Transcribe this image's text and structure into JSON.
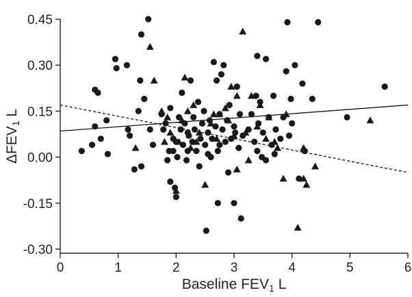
{
  "chart_data": {
    "type": "scatter",
    "title": "",
    "xlabel_main": "Baseline FEV",
    "xlabel_sub": "1",
    "xlabel_unit": " L",
    "ylabel_main": "ΔFEV",
    "ylabel_sub": "1",
    "ylabel_unit": " L",
    "xlim": [
      0,
      6
    ],
    "ylim": [
      -0.3,
      0.45
    ],
    "x_ticks": [
      0,
      1,
      2,
      3,
      4,
      5,
      6
    ],
    "x_tick_labels": [
      "0",
      "1",
      "2",
      "3",
      "4",
      "5",
      "6"
    ],
    "y_ticks": [
      -0.3,
      -0.15,
      0.0,
      0.15,
      0.3,
      0.45
    ],
    "y_tick_labels": [
      "-0.30",
      "-0.15",
      "0.00",
      "0.15",
      "0.30",
      "0.45"
    ],
    "grid": false,
    "series": [
      {
        "marker": "circle",
        "color": "#1a1a1a",
        "points": [
          [
            0.37,
            0.02
          ],
          [
            0.55,
            0.04
          ],
          [
            0.6,
            0.1
          ],
          [
            0.6,
            0.22
          ],
          [
            0.65,
            0.21
          ],
          [
            0.7,
            0.06
          ],
          [
            0.82,
            0.01
          ],
          [
            0.8,
            0.12
          ],
          [
            0.95,
            0.32
          ],
          [
            0.97,
            0.29
          ],
          [
            1.15,
            0.3
          ],
          [
            1.17,
            0.09
          ],
          [
            1.2,
            0.07
          ],
          [
            1.28,
            -0.04
          ],
          [
            1.35,
            0.15
          ],
          [
            1.38,
            0.25
          ],
          [
            1.4,
            0.4
          ],
          [
            1.45,
            0.19
          ],
          [
            1.52,
            0.45
          ],
          [
            1.55,
            0.09
          ],
          [
            1.6,
            0.04
          ],
          [
            1.4,
            -0.03
          ],
          [
            1.75,
            0.14
          ],
          [
            1.78,
            0.09
          ],
          [
            1.82,
            0.11
          ],
          [
            1.85,
            -0.01
          ],
          [
            1.88,
            0.02
          ],
          [
            1.9,
            0.16
          ],
          [
            1.9,
            -0.08
          ],
          [
            1.95,
            0.06
          ],
          [
            1.98,
            -0.1
          ],
          [
            2.0,
            0.05
          ],
          [
            2.0,
            -0.13
          ],
          [
            2.02,
            0.0
          ],
          [
            2.05,
            0.13
          ],
          [
            2.08,
            0.09
          ],
          [
            2.1,
            0.21
          ],
          [
            2.12,
            0.04
          ],
          [
            2.15,
            0.11
          ],
          [
            2.18,
            -0.01
          ],
          [
            2.2,
            0.02
          ],
          [
            2.22,
            0.07
          ],
          [
            2.25,
            0.25
          ],
          [
            2.28,
            0.05
          ],
          [
            2.3,
            0.13
          ],
          [
            2.32,
            0.09
          ],
          [
            2.35,
            0.02
          ],
          [
            2.38,
            0.18
          ],
          [
            2.4,
            -0.03
          ],
          [
            2.42,
            0.06
          ],
          [
            2.45,
            0.11
          ],
          [
            2.48,
            0.15
          ],
          [
            2.5,
            0.04
          ],
          [
            2.52,
            -0.24
          ],
          [
            2.55,
            0.08
          ],
          [
            2.58,
            0.12
          ],
          [
            2.6,
            0.0
          ],
          [
            2.62,
            0.06
          ],
          [
            2.65,
            0.31
          ],
          [
            2.68,
            0.1
          ],
          [
            2.7,
            0.25
          ],
          [
            2.72,
            0.02
          ],
          [
            2.75,
            0.14
          ],
          [
            2.78,
            0.27
          ],
          [
            2.8,
            0.09
          ],
          [
            2.82,
            0.3
          ],
          [
            2.85,
            0.05
          ],
          [
            2.88,
            0.12
          ],
          [
            2.9,
            -0.05
          ],
          [
            2.92,
            0.17
          ],
          [
            2.95,
            0.06
          ],
          [
            3.0,
            0.1
          ],
          [
            3.02,
            0.08
          ],
          [
            3.05,
            0.23
          ],
          [
            3.08,
            0.03
          ],
          [
            3.1,
            0.14
          ],
          [
            3.12,
            -0.2
          ],
          [
            3.15,
            0.07
          ],
          [
            3.0,
            -0.15
          ],
          [
            2.72,
            -0.15
          ],
          [
            3.25,
            0.09
          ],
          [
            3.3,
            0.14
          ],
          [
            3.35,
            0.05
          ],
          [
            3.38,
            0.2
          ],
          [
            3.4,
            0.33
          ],
          [
            3.42,
            0.11
          ],
          [
            3.45,
            0.18
          ],
          [
            3.48,
            0.0
          ],
          [
            3.5,
            0.08
          ],
          [
            3.55,
            0.32
          ],
          [
            3.6,
            0.13
          ],
          [
            3.65,
            0.04
          ],
          [
            3.68,
            0.2
          ],
          [
            3.72,
            0.09
          ],
          [
            3.8,
            0.06
          ],
          [
            3.85,
            0.13
          ],
          [
            3.9,
            0.28
          ],
          [
            3.92,
            0.44
          ],
          [
            3.95,
            0.07
          ],
          [
            3.98,
            0.19
          ],
          [
            4.0,
            0.11
          ],
          [
            4.05,
            0.3
          ],
          [
            4.12,
            -0.07
          ],
          [
            4.18,
            0.24
          ],
          [
            4.22,
            0.02
          ],
          [
            4.35,
            0.19
          ],
          [
            4.45,
            0.44
          ],
          [
            4.95,
            0.13
          ],
          [
            5.6,
            0.23
          ],
          [
            3.4,
            0.02
          ],
          [
            2.2,
            0.08
          ],
          [
            1.95,
            0.02
          ],
          [
            3.7,
            0.01
          ],
          [
            3.55,
            -0.01
          ],
          [
            2.75,
            0.04
          ],
          [
            2.55,
            0.01
          ]
        ]
      },
      {
        "marker": "triangle",
        "color": "#1a1a1a",
        "points": [
          [
            1.3,
            0.03
          ],
          [
            1.55,
            0.36
          ],
          [
            1.62,
            0.25
          ],
          [
            1.75,
            0.15
          ],
          [
            1.85,
            0.13
          ],
          [
            1.9,
            0.08
          ],
          [
            2.05,
            0.05
          ],
          [
            2.1,
            0.12
          ],
          [
            2.2,
            0.15
          ],
          [
            2.25,
            0.03
          ],
          [
            2.3,
            0.17
          ],
          [
            2.35,
            0.05
          ],
          [
            2.4,
            0.08
          ],
          [
            2.5,
            -0.09
          ],
          [
            2.6,
            0.11
          ],
          [
            2.65,
            0.14
          ],
          [
            2.7,
            0.06
          ],
          [
            2.75,
            0.14
          ],
          [
            2.85,
            0.16
          ],
          [
            2.9,
            0.12
          ],
          [
            2.95,
            0.23
          ],
          [
            3.0,
            0.07
          ],
          [
            3.05,
            -0.04
          ],
          [
            3.15,
            0.41
          ],
          [
            3.2,
            0.08
          ],
          [
            3.25,
            -0.01
          ],
          [
            3.3,
            0.2
          ],
          [
            3.4,
            0.1
          ],
          [
            3.45,
            0.17
          ],
          [
            3.55,
            0.06
          ],
          [
            3.6,
            0.13
          ],
          [
            3.7,
            0.05
          ],
          [
            3.75,
            0.03
          ],
          [
            3.85,
            -0.07
          ],
          [
            3.9,
            0.14
          ],
          [
            4.1,
            -0.23
          ],
          [
            4.2,
            -0.07
          ],
          [
            4.2,
            0.03
          ],
          [
            4.25,
            -0.09
          ],
          [
            4.4,
            -0.03
          ],
          [
            5.35,
            0.12
          ],
          [
            2.0,
            -0.11
          ],
          [
            1.8,
            0.05
          ],
          [
            2.15,
            0.26
          ],
          [
            3.05,
            0.2
          ]
        ]
      }
    ],
    "lines": [
      {
        "style": "solid",
        "x": [
          0,
          6
        ],
        "y": [
          0.085,
          0.17
        ]
      },
      {
        "style": "dashed",
        "x": [
          0,
          6
        ],
        "y": [
          0.17,
          -0.05
        ]
      }
    ]
  }
}
